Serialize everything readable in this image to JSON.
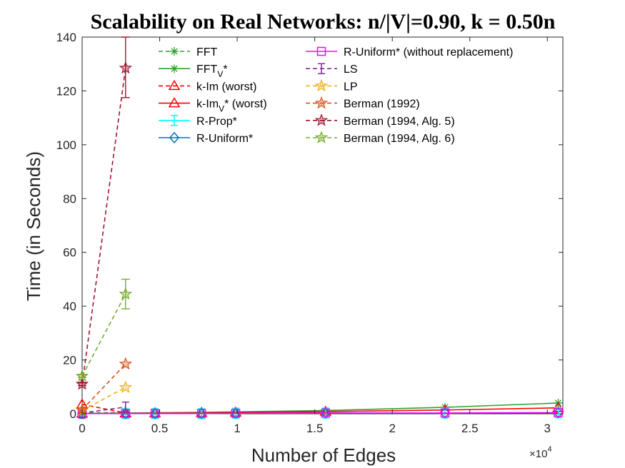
{
  "chart_data": {
    "type": "line",
    "title": "Scalability on Real Networks: n/|V|=0.90, k = 0.50n",
    "xlabel": "Number of Edges",
    "ylabel": "Time (in Seconds)",
    "x_exponent_label": "×10^4",
    "xlim": [
      0,
      31000
    ],
    "ylim": [
      0,
      140
    ],
    "x_ticks": [
      0,
      5000,
      10000,
      15000,
      20000,
      25000,
      30000
    ],
    "x_tick_labels": [
      "0",
      "0.5",
      "1",
      "1.5",
      "2",
      "2.5",
      "3"
    ],
    "y_ticks": [
      0,
      20,
      40,
      60,
      80,
      100,
      120,
      140
    ],
    "y_tick_labels": [
      "0",
      "20",
      "40",
      "60",
      "80",
      "100",
      "120",
      "140"
    ],
    "grid": false,
    "legend_position": "top",
    "series": [
      {
        "name": "FFT",
        "label_main": "FFT",
        "label_sub": "",
        "label_suffix": "",
        "color": "#2ca02c",
        "dash": true,
        "marker": "asterisk",
        "x": [
          0,
          2800
        ],
        "y": [
          0.3,
          0.5
        ]
      },
      {
        "name": "FFT_V*",
        "label_main": "FFT",
        "label_sub": "V",
        "label_suffix": "*",
        "color": "#2ca02c",
        "dash": false,
        "marker": "asterisk",
        "x": [
          0,
          2800,
          4700,
          7700,
          9900,
          15700,
          23400,
          30700
        ],
        "y": [
          0.1,
          0.3,
          0.4,
          0.5,
          0.7,
          1.2,
          2.4,
          4.0
        ]
      },
      {
        "name": "k-Im (worst)",
        "label_main": "k-Im (worst)",
        "label_sub": "",
        "label_suffix": "",
        "color": "#ff0000",
        "dash": true,
        "marker": "triangle",
        "x": [
          0,
          2800
        ],
        "y": [
          3.5,
          0.3
        ]
      },
      {
        "name": "k-Im_V* (worst)",
        "label_main": "k-Im",
        "label_sub": "V",
        "label_suffix": "* (worst)",
        "color": "#ff0000",
        "dash": false,
        "marker": "triangle",
        "x": [
          0,
          2800,
          4700,
          7700,
          9900,
          15700,
          23400,
          30700
        ],
        "y": [
          0.1,
          0.2,
          0.3,
          0.4,
          0.5,
          0.8,
          1.4,
          2.2
        ]
      },
      {
        "name": "R-Prop*",
        "label_main": "R-Prop*",
        "label_sub": "",
        "label_suffix": "",
        "color": "#00ffff",
        "dash": false,
        "marker": "errorbar",
        "x": [
          0,
          2800,
          4700,
          7700,
          9900,
          15700,
          23400,
          30700
        ],
        "y": [
          0.1,
          0.1,
          0.1,
          0.1,
          0.2,
          0.3,
          0.3,
          0.4
        ]
      },
      {
        "name": "R-Uniform*",
        "label_main": "R-Uniform*",
        "label_sub": "",
        "label_suffix": "",
        "color": "#0072bd",
        "dash": false,
        "marker": "diamond",
        "x": [
          0,
          2800,
          4700,
          7700,
          9900,
          15700,
          23400,
          30700
        ],
        "y": [
          0.1,
          0.1,
          0.1,
          0.1,
          0.2,
          0.3,
          0.3,
          0.4
        ]
      },
      {
        "name": "R-Uniform* (without replacement)",
        "label_main": "R-Uniform* (without replacement)",
        "label_sub": "",
        "label_suffix": "",
        "color": "#ff00ff",
        "dash": false,
        "marker": "square",
        "x": [
          0,
          2800,
          4700,
          7700,
          9900,
          15700,
          23400,
          30700
        ],
        "y": [
          0.1,
          0.1,
          0.1,
          0.1,
          0.2,
          0.3,
          0.3,
          0.4
        ]
      },
      {
        "name": "LS",
        "label_main": "LS",
        "label_sub": "",
        "label_suffix": "",
        "color": "#7e2f8e",
        "dash": true,
        "marker": "errorbar",
        "x": [
          0,
          2800
        ],
        "y": [
          0.3,
          2.5
        ]
      },
      {
        "name": "LP",
        "label_main": "LP",
        "label_sub": "",
        "label_suffix": "",
        "color": "#edb120",
        "dash": true,
        "marker": "star",
        "x": [
          0,
          2800
        ],
        "y": [
          1.2,
          9.8
        ]
      },
      {
        "name": "Berman (1992)",
        "label_main": "Berman (1992)",
        "label_sub": "",
        "label_suffix": "",
        "color": "#d95319",
        "dash": true,
        "marker": "star",
        "x": [
          0,
          2800
        ],
        "y": [
          1.5,
          18.5
        ]
      },
      {
        "name": "Berman (1994, Alg. 5)",
        "label_main": "Berman (1994, Alg. 5)",
        "label_sub": "",
        "label_suffix": "",
        "color": "#a2142f",
        "dash": true,
        "marker": "star",
        "x": [
          0,
          2800
        ],
        "y": [
          11.0,
          128.5
        ],
        "err": [
          [
            0.5,
            0.5
          ],
          [
            11.0,
            11.5
          ]
        ]
      },
      {
        "name": "Berman (1994, Alg. 6)",
        "label_main": "Berman (1994, Alg. 6)",
        "label_sub": "",
        "label_suffix": "",
        "color": "#77ac30",
        "dash": true,
        "marker": "star",
        "x": [
          0,
          2800
        ],
        "y": [
          14.0,
          44.5
        ],
        "err": [
          [
            0.5,
            0.5
          ],
          [
            5.5,
            5.5
          ]
        ]
      }
    ]
  }
}
